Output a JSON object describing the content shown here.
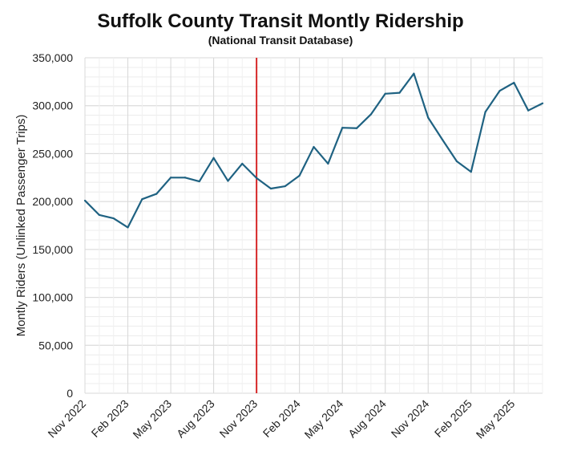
{
  "chart_data": {
    "type": "line",
    "title": "Suffolk County Transit Montly Ridership",
    "subtitle": "(National Transit Database)",
    "xlabel": "",
    "ylabel": "Montly Riders (Unlinked Passenger Trips)",
    "ylim": [
      0,
      350000
    ],
    "yticks": [
      "0",
      "50,000",
      "100,000",
      "150,000",
      "200,000",
      "250,000",
      "300,000",
      "350,000"
    ],
    "xticks": [
      "Nov 2022",
      "Feb 2023",
      "May 2023",
      "Aug 2023",
      "Nov 2023",
      "Feb 2024",
      "May 2024",
      "Aug 2024",
      "Nov 2024",
      "Feb 2025",
      "May 2025"
    ],
    "grid": true,
    "series_color": "#1f6282",
    "marker_color": "#d62728",
    "marker_month": "Nov 2023",
    "series": [
      {
        "x": [
          "Nov 2022",
          "Dec 2022",
          "Jan 2023",
          "Feb 2023",
          "Mar 2023",
          "Apr 2023",
          "May 2023",
          "Jun 2023",
          "Jul 2023",
          "Aug 2023",
          "Sep 2023",
          "Oct 2023",
          "Nov 2023",
          "Dec 2023",
          "Jan 2024",
          "Feb 2024",
          "Mar 2024",
          "Apr 2024",
          "May 2024",
          "Jun 2024",
          "Jul 2024",
          "Aug 2024",
          "Sep 2024",
          "Oct 2024",
          "Nov 2024",
          "Dec 2024",
          "Jan 2025",
          "Feb 2025",
          "Mar 2025",
          "Apr 2025",
          "May 2025",
          "Jun 2025",
          "Jul 2025"
        ],
        "values": [
          201000,
          186000,
          182500,
          173000,
          202500,
          208000,
          225000,
          225000,
          221000,
          245500,
          221500,
          239500,
          224500,
          213500,
          216000,
          227000,
          257000,
          239500,
          277000,
          276500,
          291000,
          312500,
          313500,
          333500,
          287500,
          264500,
          242000,
          231000,
          293500,
          315500,
          324000,
          295000,
          302500
        ]
      }
    ]
  }
}
